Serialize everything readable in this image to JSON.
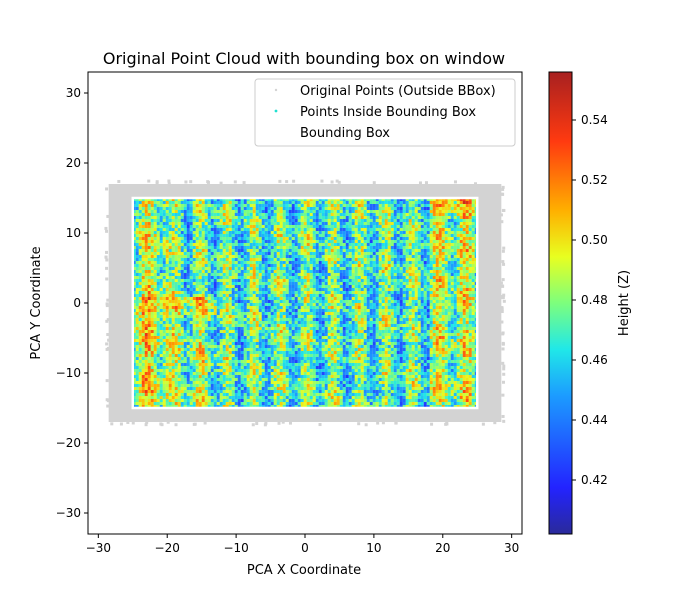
{
  "chart_data": {
    "type": "scatter",
    "title": "Original Point Cloud with bounding box on window",
    "xlabel": "PCA X Coordinate",
    "ylabel": "PCA Y Coordinate",
    "xlim": [
      -31.5,
      31.5
    ],
    "ylim": [
      -33,
      33
    ],
    "xticks": [
      -30,
      -20,
      -10,
      0,
      10,
      20,
      30
    ],
    "yticks": [
      -30,
      -20,
      -10,
      0,
      10,
      20,
      30
    ],
    "xtick_labels": [
      "−30",
      "−20",
      "−10",
      "0",
      "10",
      "20",
      "30"
    ],
    "ytick_labels": [
      "−30",
      "−20",
      "−10",
      "0",
      "10",
      "20",
      "30"
    ],
    "series": [
      {
        "name": "Original Points (Outside BBox)",
        "color": "#d3d3d3",
        "x_range": [
          -28.5,
          28.5
        ],
        "y_range": [
          -17,
          17
        ]
      },
      {
        "name": "Points Inside Bounding Box",
        "colormap": "jet",
        "x_range": [
          -25,
          25
        ],
        "y_range": [
          -15,
          15
        ]
      },
      {
        "name": "Bounding Box",
        "color": "#ffffff",
        "x": [
          -25,
          25,
          25,
          -25,
          -25
        ],
        "y": [
          -15,
          -15,
          15,
          15,
          -15
        ]
      }
    ],
    "colorbar": {
      "label": "Height (Z)",
      "min": 0.402,
      "max": 0.556,
      "ticks": [
        0.42,
        0.44,
        0.46,
        0.48,
        0.5,
        0.52,
        0.54
      ],
      "tick_labels": [
        "0.42",
        "0.44",
        "0.46",
        "0.48",
        "0.50",
        "0.52",
        "0.54"
      ]
    },
    "legend_position": "top-right"
  }
}
